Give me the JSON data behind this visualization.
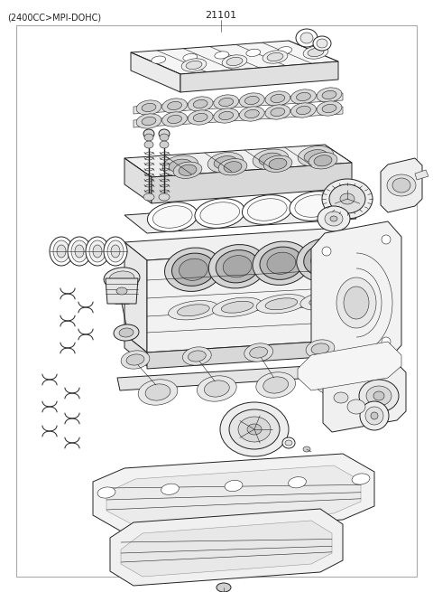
{
  "title_left": "(2400CC>MPI-DOHC)",
  "title_center": "21101",
  "bg": "#ffffff",
  "border_color": "#aaaaaa",
  "lc": "#222222",
  "fig_width": 4.8,
  "fig_height": 6.55,
  "dpi": 100
}
